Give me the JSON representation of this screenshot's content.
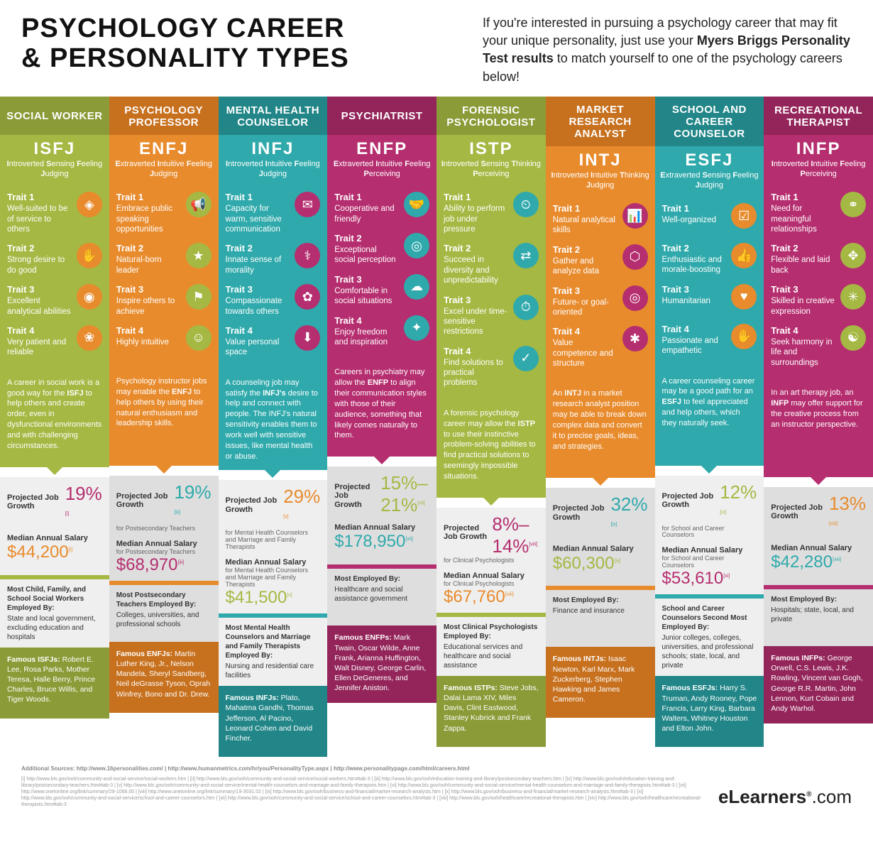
{
  "header": {
    "title_l1": "PSYCHOLOGY CAREER",
    "title_l2": "& PERSONALITY TYPES",
    "sub_pre": "If you're interested in pursuing a psychology career that may fit your unique personality, just use your ",
    "sub_bold": "Myers Briggs Personality Test results",
    "sub_post": " to match yourself to one of the psychology careers below!"
  },
  "palette": {
    "olive": "#a5b843",
    "orange": "#e88b2d",
    "teal": "#2fa9ab",
    "magenta": "#b52e6f",
    "olive_dark": "#8a9b37",
    "orange_dark": "#c7711f",
    "teal_dark": "#228688",
    "magenta_dark": "#93255a",
    "gray_light": "#efefef",
    "gray_med": "#dedede"
  },
  "columns": [
    {
      "career": "SOCIAL WORKER",
      "mbti": "ISFJ",
      "mbti_words": [
        "Introverted",
        "Sensing",
        "Feeling",
        "Judging"
      ],
      "colors": {
        "main": "olive",
        "head": "olive_dark",
        "icon": "orange",
        "stat": "magenta",
        "salary": "orange"
      },
      "traits": [
        {
          "text": "Well-suited to be of service to others",
          "glyph": "◈"
        },
        {
          "text": "Strong desire to do good",
          "glyph": "✋"
        },
        {
          "text": "Excellent analytical abilities",
          "glyph": "◉"
        },
        {
          "text": "Very patient and reliable",
          "glyph": "❀"
        }
      ],
      "desc_pre": "A career in social work is a good way for the ",
      "desc_bold": "ISFJ",
      "desc_post": " to help others and create order, even in dysfunctional environments and with challenging circumstances.",
      "growth_label": "Projected Job Growth",
      "growth": "19%",
      "growth_ref": "[i]",
      "growth_sub": "",
      "salary_label": "Median Annual Salary",
      "salary": "$44,200",
      "salary_ref": "[i]",
      "salary_sub": "",
      "employed_title": "Most Child, Family, and School Social Workers Employed By:",
      "employed_text": "State and local government, excluding education and hospitals",
      "famous_label": "Famous ISFJs:",
      "famous": "Robert E. Lee, Rosa Parks, Mother Teresa, Halle Berry, Prince Charles, Bruce Willis, and Tiger Woods."
    },
    {
      "career": "PSYCHOLOGY PROFESSOR",
      "mbti": "ENFJ",
      "mbti_words": [
        "Extraverted",
        "Intuitive",
        "Feeling",
        "Judging"
      ],
      "colors": {
        "main": "orange",
        "head": "orange_dark",
        "icon": "olive",
        "stat": "teal",
        "salary": "magenta"
      },
      "traits": [
        {
          "text": "Embrace public speaking opportunities",
          "glyph": "📢"
        },
        {
          "text": "Natural-born leader",
          "glyph": "★"
        },
        {
          "text": "Inspire others to achieve",
          "glyph": "⚑"
        },
        {
          "text": "Highly intuitive",
          "glyph": "☺"
        }
      ],
      "desc_pre": "Psychology instructor jobs may enable the ",
      "desc_bold": "ENFJ",
      "desc_post": " to help others by using their natural enthusiasm and leadership skills.",
      "growth_label": "Projected Job Growth",
      "growth": "19%",
      "growth_ref": "[iii]",
      "growth_sub": "for Postsecondary Teachers",
      "salary_label": "Median Annual Salary",
      "salary": "$68,970",
      "salary_ref": "[iii]",
      "salary_sub": "for Postsecondary Teachers",
      "employed_title": "Most Postsecondary Teachers Employed By:",
      "employed_text": "Colleges, universities, and professional schools",
      "famous_label": "Famous ENFJs:",
      "famous": "Martin Luther King, Jr., Nelson Mandela, Sheryl Sandberg, Neil deGrasse Tyson, Oprah Winfrey, Bono and Dr. Drew."
    },
    {
      "career": "MENTAL HEALTH COUNSELOR",
      "mbti": "INFJ",
      "mbti_words": [
        "Introverted",
        "Intuitive",
        "Feeling",
        "Judging"
      ],
      "colors": {
        "main": "teal",
        "head": "teal_dark",
        "icon": "magenta",
        "stat": "orange",
        "salary": "olive"
      },
      "traits": [
        {
          "text": "Capacity for warm, sensitive communication",
          "glyph": "✉"
        },
        {
          "text": "Innate sense of morality",
          "glyph": "⚕"
        },
        {
          "text": "Compassionate towards others",
          "glyph": "✿"
        },
        {
          "text": "Value personal space",
          "glyph": "⬇"
        }
      ],
      "desc_pre": "A counseling job may satisfy the ",
      "desc_bold": "INFJ's",
      "desc_post": " desire to help and connect with people. The INFJ's natural sensitivity enables them to work well with sensitive issues, like mental health or abuse.",
      "growth_label": "Projected Job Growth",
      "growth": "29%",
      "growth_ref": "[v]",
      "growth_sub": "for Mental Health Counselors and Marriage and Family Therapists",
      "salary_label": "Median Annual Salary",
      "salary": "$41,500",
      "salary_ref": "[v]",
      "salary_sub": "for Mental Health Counselors and Marriage and Family Therapists",
      "employed_title": "Most Mental Health Counselors and Marriage and Family Therapists Employed By:",
      "employed_text": "Nursing and residential care facilities",
      "famous_label": "Famous INFJs:",
      "famous": "Plato, Mahatma Gandhi, Thomas Jefferson, Al Pacino, Leonard Cohen and David Fincher."
    },
    {
      "career": "PSYCHIATRIST",
      "mbti": "ENFP",
      "mbti_words": [
        "Extraverted",
        "Intuitive",
        "Feeling",
        "Perceiving"
      ],
      "colors": {
        "main": "magenta",
        "head": "magenta_dark",
        "icon": "teal",
        "stat": "olive",
        "salary": "teal"
      },
      "traits": [
        {
          "text": "Cooperative and friendly",
          "glyph": "🤝"
        },
        {
          "text": "Exceptional social perception",
          "glyph": "◎"
        },
        {
          "text": "Comfortable in social situations",
          "glyph": "☁"
        },
        {
          "text": "Enjoy freedom and inspiration",
          "glyph": "✦"
        }
      ],
      "desc_pre": "Careers in psychiatry may allow the ",
      "desc_bold": "ENFP",
      "desc_post": " to align their communication styles with those of their audience, something that likely comes naturally to them.",
      "growth_label": "Projected Job Growth",
      "growth": "15%–21%",
      "growth_ref": "[vii]",
      "growth_sub": "",
      "salary_label": "Median Annual Salary",
      "salary": "$178,950",
      "salary_ref": "[vii]",
      "salary_sub": "",
      "employed_title": "Most Employed By:",
      "employed_text": "Healthcare and social assistance government",
      "famous_label": "Famous ENFPs:",
      "famous": "Mark Twain, Oscar Wilde, Anne Frank, Arianna Huffington, Walt Disney, George Carlin, Ellen DeGeneres, and Jennifer Aniston."
    },
    {
      "career": "FORENSIC PSYCHOLOGIST",
      "mbti": "ISTP",
      "mbti_words": [
        "Introverted",
        "Sensing",
        "Thinking",
        "Perceiving"
      ],
      "colors": {
        "main": "olive",
        "head": "olive_dark",
        "icon": "teal",
        "stat": "magenta",
        "salary": "orange"
      },
      "traits": [
        {
          "text": "Ability to perform job under pressure",
          "glyph": "⏲"
        },
        {
          "text": "Succeed in diversity and unpredictability",
          "glyph": "⇄"
        },
        {
          "text": "Excel under time-sensitive restrictions",
          "glyph": "⏱"
        },
        {
          "text": "Find solutions to practical problems",
          "glyph": "✓"
        }
      ],
      "desc_pre": "A forensic psychology career may allow the ",
      "desc_bold": "ISTP",
      "desc_post": " to use their instinctive problem-solving abilities to find practical solutions to seemingly impossible situations.",
      "growth_label": "Projected Job Growth",
      "growth": "8%–14%",
      "growth_ref": "[viii]",
      "growth_sub": "for Clinical Psychologists",
      "salary_label": "Median Annual Salary",
      "salary": "$67,760",
      "salary_ref": "[viii]",
      "salary_sub": "for Clinical Psychologists",
      "employed_title": "Most Clinical Psychologists Employed By:",
      "employed_text": "Educational services and healthcare and social assistance",
      "famous_label": "Famous ISTPs:",
      "famous": "Steve Jobs, Dalai Lama XIV, Miles Davis, Clint Eastwood, Stanley Kubrick and Frank Zappa."
    },
    {
      "career": "MARKET RESEARCH ANALYST",
      "mbti": "INTJ",
      "mbti_words": [
        "Introverted",
        "Intuitive",
        "Thinking",
        "Judging"
      ],
      "colors": {
        "main": "orange",
        "head": "orange_dark",
        "icon": "magenta",
        "stat": "teal",
        "salary": "olive"
      },
      "traits": [
        {
          "text": "Natural analytical skills",
          "glyph": "📊"
        },
        {
          "text": "Gather and analyze data",
          "glyph": "⬡"
        },
        {
          "text": "Future- or goal-oriented",
          "glyph": "◎"
        },
        {
          "text": "Value competence and structure",
          "glyph": "✱"
        }
      ],
      "desc_pre": "An ",
      "desc_bold": "INTJ",
      "desc_post": " in a market research analyst position may be able to break down complex data and convert it to precise goals, ideas, and strategies.",
      "growth_label": "Projected Job Growth",
      "growth": "32%",
      "growth_ref": "[ix]",
      "growth_sub": "",
      "salary_label": "Median Annual Salary",
      "salary": "$60,300",
      "salary_ref": "[ix]",
      "salary_sub": "",
      "employed_title": "Most Employed By:",
      "employed_text": "Finance and insurance",
      "famous_label": "Famous INTJs:",
      "famous": "Isaac Newton, Karl Marx, Mark Zuckerberg, Stephen Hawking and James Cameron."
    },
    {
      "career": "SCHOOL AND CAREER COUNSELOR",
      "mbti": "ESFJ",
      "mbti_words": [
        "Extraverted",
        "Sensing",
        "Feeling",
        "Judging"
      ],
      "colors": {
        "main": "teal",
        "head": "teal_dark",
        "icon": "orange",
        "stat": "olive",
        "salary": "magenta"
      },
      "traits": [
        {
          "text": "Well-organized",
          "glyph": "☑"
        },
        {
          "text": "Enthusiastic and morale-boosting",
          "glyph": "👍"
        },
        {
          "text": "Humanitarian",
          "glyph": "♥"
        },
        {
          "text": "Passionate and empathetic",
          "glyph": "✋"
        }
      ],
      "desc_pre": "A career counseling career may be a good path for an ",
      "desc_bold": "ESFJ",
      "desc_post": " to feel appreciated and help others, which they naturally seek.",
      "growth_label": "Projected Job Growth",
      "growth": "12%",
      "growth_ref": "[xi]",
      "growth_sub": "for School and Career Counselors",
      "salary_label": "Median Annual Salary",
      "salary": "$53,610",
      "salary_ref": "[xi]",
      "salary_sub": "for School and Career Counselors",
      "employed_title": "School and Career Counselors Second Most Employed By:",
      "employed_text": "Junior colleges, colleges, universities, and professional schools; state, local, and private",
      "famous_label": "Famous ESFJs:",
      "famous": "Harry S. Truman, Andy Rooney, Pope Francis, Larry King, Barbara Walters, Whitney Houston and Elton John."
    },
    {
      "career": "RECREATIONAL THERAPIST",
      "mbti": "INFP",
      "mbti_words": [
        "Introverted",
        "Intuitive",
        "Feeling",
        "Perceiving"
      ],
      "colors": {
        "main": "magenta",
        "head": "magenta_dark",
        "icon": "olive",
        "stat": "orange",
        "salary": "teal"
      },
      "traits": [
        {
          "text": "Need for meaningful relationships",
          "glyph": "⚭"
        },
        {
          "text": "Flexible and laid back",
          "glyph": "✥"
        },
        {
          "text": "Skilled in creative expression",
          "glyph": "✳"
        },
        {
          "text": "Seek harmony in life and surroundings",
          "glyph": "☯"
        }
      ],
      "desc_pre": "In an art therapy job, an ",
      "desc_bold": "INFP",
      "desc_post": " may offer support for the creative process from an instructor perspective.",
      "growth_label": "Projected Job Growth",
      "growth": "13%",
      "growth_ref": "[xiii]",
      "growth_sub": "",
      "salary_label": "Median Annual Salary",
      "salary": "$42,280",
      "salary_ref": "[xiii]",
      "salary_sub": "",
      "employed_title": "Most Employed By:",
      "employed_text": "Hospitals; state, local, and private",
      "famous_label": "Famous INFPs:",
      "famous": "George Orwell, C.S. Lewis, J.K. Rowling, Vincent van Gogh, George R.R. Martin, John Lennon, Kurt Cobain and Andy Warhol."
    }
  ],
  "trait_labels": [
    "Trait 1",
    "Trait 2",
    "Trait 3",
    "Trait 4"
  ],
  "footer": {
    "sources_title": "Additional Sources:",
    "sources_line": "http://www.16personalities.com/ | http://www.humanmetrics.com/hr/you/PersonalityType.aspx | http://www.personalitypage.com/html/careers.html",
    "refs": "[i] http://www.bls.gov/ooh/community-and-social-service/social-workers.htm | [ii] http://www.bls.gov/ooh/community-and-social-service/social-workers.htm#tab-3 | [iii] http://www.bls.gov/ooh/education-training-and-library/postsecondary-teachers.htm | [iv] http://www.bls.gov/ooh/education-training-and-library/postsecondary-teachers.htm#tab-3 | [v] http://www.bls.gov/ooh/community-and-social-service/mental-health-counselors-and-marriage-and-family-therapists.htm | [vi] http://www.bls.gov/ooh/community-and-social-service/mental-health-counselors-and-marriage-and-family-therapists.htm#tab-3 | [vii] http://www.onetonline.org/link/summary/29-1066.00 | [viii] http://www.onetonline.org/link/summary/19-3031.02 | [ix] http://www.bls.gov/ooh/business-and-financial/market-research-analysts.htm | [x] http://www.bls.gov/ooh/business-and-financial/market-research-analysts.htm#tab-3 | [xi] http://www.bls.gov/ooh/community-and-social-service/school-and-career-counselors.htm | [xii] http://www.bls.gov/ooh/community-and-social-service/school-and-career-counselors.htm#tab-3 | [xiii] http://www.bls.gov/ooh/healthcare/recreational-therapists.htm | [xiv] http://www.bls.gov/ooh/healthcare/recreational-therapists.htm#tab-3",
    "logo_main": "eLearners",
    "logo_ext": ".com"
  }
}
